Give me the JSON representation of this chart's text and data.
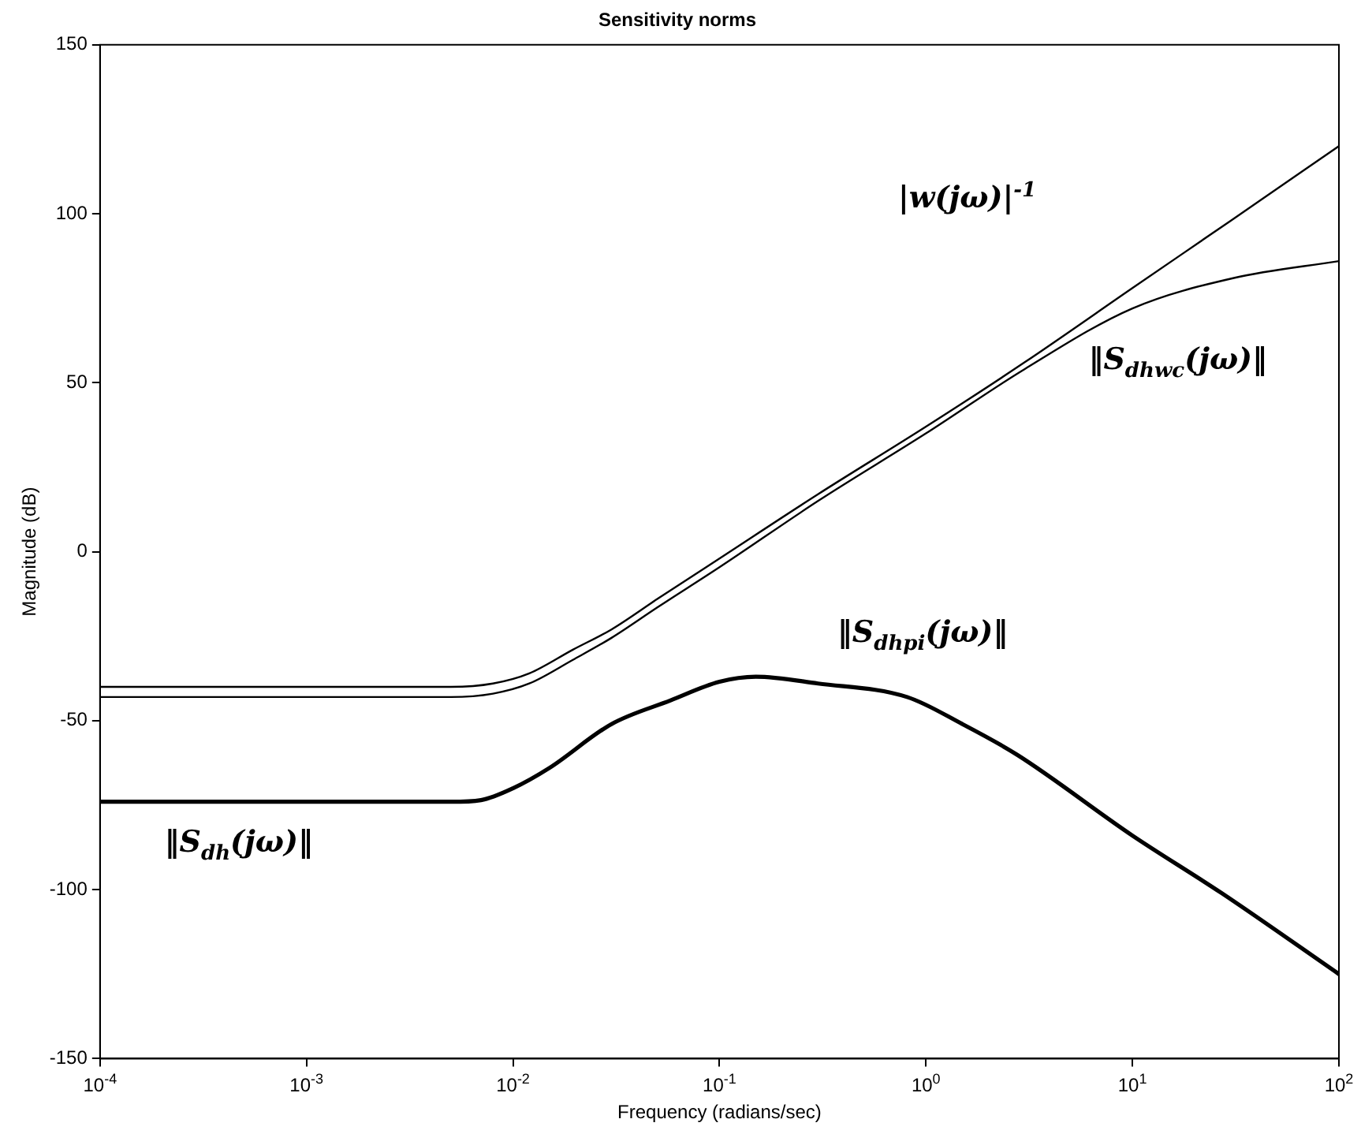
{
  "chart_data": {
    "type": "line",
    "title": "Sensitivity norms",
    "xlabel": "Frequency (radians/sec)",
    "ylabel": "Magnitude (dB)",
    "log": "x",
    "grid": false,
    "legend": false,
    "marker": "none",
    "line_style": "solid",
    "xlim": [
      0.0001,
      100
    ],
    "ylim": [
      -150,
      150
    ],
    "xticks": [
      {
        "value": 0.0001,
        "label": "10$^{-4}$"
      },
      {
        "value": 0.001,
        "label": "10$^{-3}$"
      },
      {
        "value": 0.01,
        "label": "10$^{-2}$"
      },
      {
        "value": 0.1,
        "label": "10$^{-1}$"
      },
      {
        "value": 1,
        "label": "10$^{0}$"
      },
      {
        "value": 10,
        "label": "10$^{1}$"
      },
      {
        "value": 100,
        "label": "10$^{2}$"
      }
    ],
    "yticks": [
      -150,
      -100,
      -50,
      0,
      50,
      100,
      150
    ],
    "series": [
      {
        "color": "#000000",
        "x": [
          0.0001,
          0.001,
          0.005,
          0.008,
          0.012,
          0.0195,
          0.03,
          0.05,
          0.1,
          0.3,
          1,
          3,
          10,
          30,
          100
        ],
        "values": [
          -40,
          -40,
          -40,
          -39,
          -36,
          -29,
          -23,
          -14,
          -2,
          17,
          37,
          56,
          78,
          98,
          120
        ]
      },
      {
        "color": "#000000",
        "x": [
          0.0001,
          0.001,
          0.005,
          0.008,
          0.012,
          0.0195,
          0.03,
          0.05,
          0.1,
          0.3,
          1,
          3,
          10,
          31,
          100
        ],
        "values": [
          -43,
          -43,
          -43,
          -42,
          -39,
          -32,
          -25.5,
          -16.5,
          -4.6,
          15,
          35,
          54,
          72,
          81,
          86
        ]
      },
      {
        "color": "#000000",
        "x": [
          0.0001,
          0.001,
          0.005,
          0.007,
          0.01,
          0.015,
          0.03,
          0.058,
          0.1,
          0.15,
          0.3,
          0.81,
          1.5,
          2.75,
          10,
          27,
          100
        ],
        "values": [
          -74,
          -74,
          -74,
          -73.5,
          -70,
          -64,
          -51,
          -44,
          -38.5,
          -37,
          -39,
          -43,
          -51,
          -60,
          -84,
          -101,
          -125
        ]
      }
    ],
    "annotations": [
      "|w(jω)|$^{-1}$",
      "‖S$_{dhwc}$(jω)‖",
      "‖S$_{dhpi}$(jω)‖",
      "‖S$_{dh}$(jω)‖"
    ]
  }
}
